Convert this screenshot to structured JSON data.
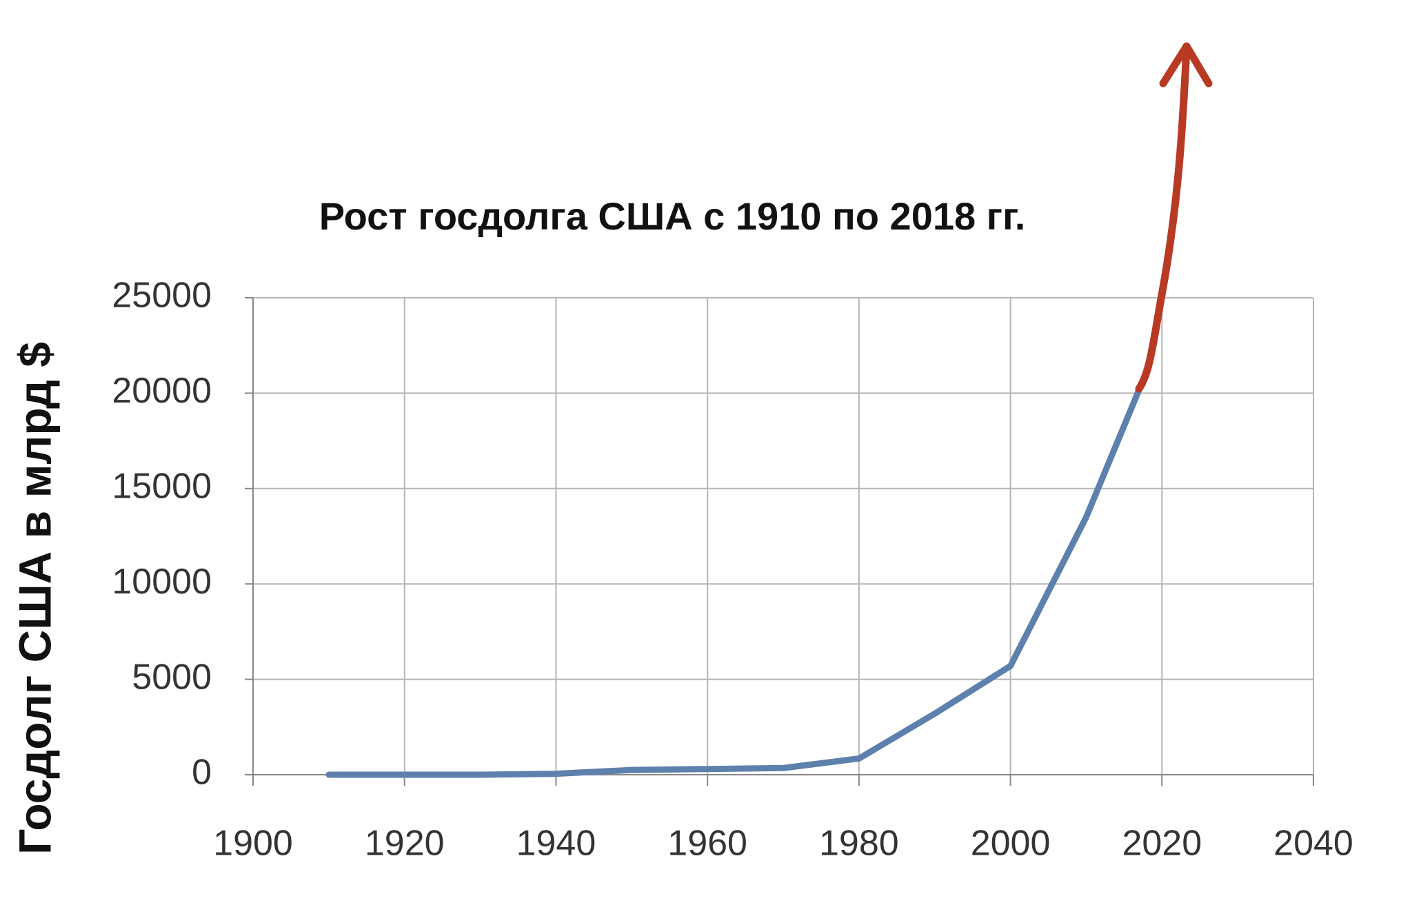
{
  "chart_data": {
    "type": "line",
    "title": "Рост госдолга США с 1910 по 2018 гг.",
    "y_label": "Госдолг США в млрд $",
    "x": [
      1910,
      1920,
      1930,
      1940,
      1950,
      1960,
      1970,
      1980,
      1990,
      2000,
      2010,
      2017
    ],
    "values": [
      0,
      0,
      0,
      50,
      250,
      300,
      350,
      850,
      3200,
      5700,
      13500,
      20200
    ],
    "color": "#5d80ad",
    "xlim": [
      1900,
      2040
    ],
    "xticks": [
      1900,
      1920,
      1940,
      1960,
      1980,
      2000,
      2020,
      2040
    ],
    "ylim": [
      0,
      25000
    ],
    "yticks": [
      0,
      5000,
      10000,
      15000,
      20000,
      25000
    ],
    "grid": true
  }
}
